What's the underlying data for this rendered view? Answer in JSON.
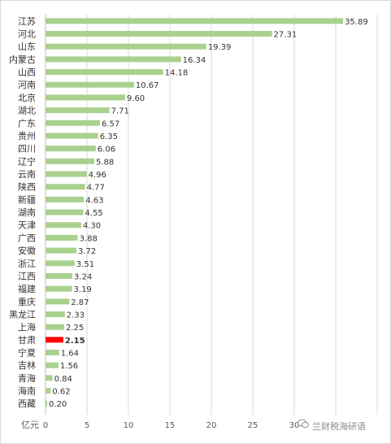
{
  "chart_data": {
    "type": "bar",
    "orientation": "horizontal",
    "categories": [
      "江苏",
      "河北",
      "山东",
      "内蒙古",
      "山西",
      "河南",
      "北京",
      "湖北",
      "广东",
      "贵州",
      "四川",
      "辽宁",
      "云南",
      "陕西",
      "新疆",
      "湖南",
      "天津",
      "广西",
      "安徽",
      "浙江",
      "江西",
      "福建",
      "重庆",
      "黑龙江",
      "上海",
      "甘肃",
      "宁夏",
      "吉林",
      "青海",
      "海南",
      "西藏"
    ],
    "values": [
      35.89,
      27.31,
      19.39,
      16.34,
      14.18,
      10.67,
      9.6,
      7.71,
      6.57,
      6.35,
      6.06,
      5.88,
      4.96,
      4.77,
      4.63,
      4.55,
      4.3,
      3.88,
      3.72,
      3.51,
      3.24,
      3.19,
      2.87,
      2.33,
      2.25,
      2.15,
      1.64,
      1.56,
      0.84,
      0.62,
      0.2
    ],
    "value_labels": [
      "35.89",
      "27.31",
      "19.39",
      "16.34",
      "14.18",
      "10.67",
      "9.60",
      "7.71",
      "6.57",
      "6.35",
      "6.06",
      "5.88",
      "4.96",
      "4.77",
      "4.63",
      "4.55",
      "4.30",
      "3.88",
      "3.72",
      "3.51",
      "3.24",
      "3.19",
      "2.87",
      "2.33",
      "2.25",
      "2.15",
      "1.64",
      "1.56",
      "0.84",
      "0.62",
      "0.20"
    ],
    "highlight_category": "甘肃",
    "x_ticks": [
      "0",
      "5",
      "10",
      "15",
      "20",
      "25",
      "30"
    ],
    "xlim": [
      0,
      40
    ],
    "unit_label": "亿元",
    "grid": true,
    "colors": {
      "bar": "#a9d18e",
      "highlight": "#ff0000",
      "grid": "#d9d9d9",
      "axis": "#bfbfbf"
    }
  },
  "watermark": "兰财税海研语",
  "watermark_icon": "wechat-icon"
}
